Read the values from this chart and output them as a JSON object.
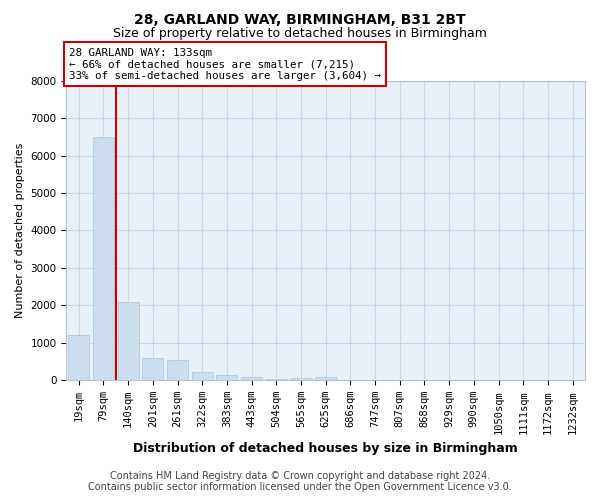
{
  "title1": "28, GARLAND WAY, BIRMINGHAM, B31 2BT",
  "title2": "Size of property relative to detached houses in Birmingham",
  "xlabel": "Distribution of detached houses by size in Birmingham",
  "ylabel": "Number of detached properties",
  "annotation_title": "28 GARLAND WAY: 133sqm",
  "annotation_line1": "← 66% of detached houses are smaller (7,215)",
  "annotation_line2": "33% of semi-detached houses are larger (3,604) →",
  "footer1": "Contains HM Land Registry data © Crown copyright and database right 2024.",
  "footer2": "Contains public sector information licensed under the Open Government Licence v3.0.",
  "bar_color": "#ccdded",
  "bar_edge_color": "#aac4d8",
  "vline_color": "#cc0000",
  "annotation_box_edgecolor": "#cc0000",
  "grid_color": "#c8d8e8",
  "background_color": "#e8f0f8",
  "categories": [
    "19sqm",
    "79sqm",
    "140sqm",
    "201sqm",
    "261sqm",
    "322sqm",
    "383sqm",
    "443sqm",
    "504sqm",
    "565sqm",
    "625sqm",
    "686sqm",
    "747sqm",
    "807sqm",
    "868sqm",
    "929sqm",
    "990sqm",
    "1050sqm",
    "1111sqm",
    "1172sqm",
    "1232sqm"
  ],
  "values": [
    1200,
    6500,
    2100,
    580,
    530,
    210,
    140,
    85,
    45,
    48,
    75,
    0,
    0,
    0,
    0,
    0,
    0,
    0,
    0,
    0,
    0
  ],
  "ylim": [
    0,
    8000
  ],
  "yticks": [
    0,
    1000,
    2000,
    3000,
    4000,
    5000,
    6000,
    7000,
    8000
  ],
  "vline_bar_index": 1,
  "title1_fontsize": 10,
  "title2_fontsize": 9,
  "xlabel_fontsize": 9,
  "ylabel_fontsize": 8,
  "tick_fontsize": 7.5,
  "footer_fontsize": 7
}
